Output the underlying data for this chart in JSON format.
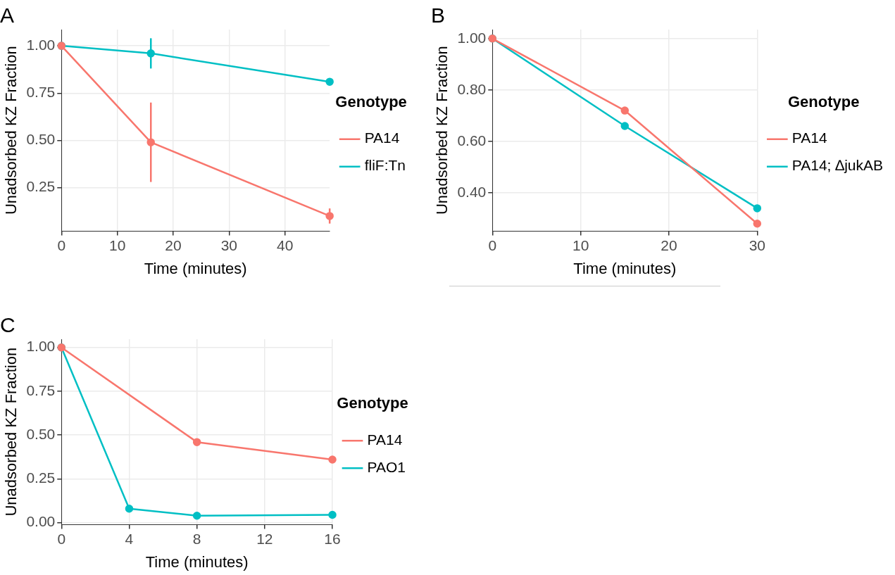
{
  "chart_data": [
    {
      "type": "line",
      "title": "A",
      "xlabel": "Time (minutes)",
      "ylabel": "Unadsorbed KZ Fraction",
      "legend_title": "Genotype",
      "x": [
        0,
        16,
        48
      ],
      "xlim": [
        0,
        48
      ],
      "xticks": [
        0,
        10,
        20,
        30,
        40
      ],
      "ylim": [
        0.02,
        1.086
      ],
      "yticks": [
        {
          "value": 0.25,
          "label": "0.25"
        },
        {
          "value": 0.5,
          "label": "0.50"
        },
        {
          "value": 0.75,
          "label": "0.75"
        },
        {
          "value": 1,
          "label": "1.00"
        }
      ],
      "grid": true,
      "legend": "right",
      "marker": "circle",
      "line_style": "solid",
      "series": [
        {
          "name": "PA14",
          "color": "#f8766d",
          "values": [
            1,
            0.49,
            0.1
          ],
          "errors": [
            null,
            [
              0.28,
              0.7
            ],
            [
              0.06,
              0.14
            ]
          ]
        },
        {
          "name": "fliF:Tn",
          "color": "#00bfc4",
          "values": [
            1,
            0.96,
            0.81
          ],
          "errors": [
            null,
            [
              0.88,
              1.04
            ],
            null
          ]
        }
      ]
    },
    {
      "type": "line",
      "title": "B",
      "xlabel": "Time (minutes)",
      "ylabel": "Unadsorbed KZ Fraction",
      "legend_title": "Genotype",
      "x": [
        0,
        15,
        30
      ],
      "xlim": [
        0,
        30
      ],
      "xticks": [
        0,
        10,
        20,
        30
      ],
      "ylim": [
        0.251,
        1.035
      ],
      "yticks": [
        {
          "value": 0.4,
          "label": "0.40"
        },
        {
          "value": 0.6,
          "label": "0.60"
        },
        {
          "value": 0.8,
          "label": "0.80"
        },
        {
          "value": 1,
          "label": "1.00"
        }
      ],
      "grid": true,
      "legend": "right",
      "marker": "circle",
      "line_style": "solid",
      "series": [
        {
          "name": "PA14",
          "color": "#f8766d",
          "values": [
            1,
            0.72,
            0.28
          ]
        },
        {
          "name": "PA14; ∆jukAB",
          "color": "#00bfc4",
          "values": [
            1,
            0.66,
            0.34
          ]
        }
      ]
    },
    {
      "type": "line",
      "title": "C",
      "xlabel": "Time (minutes)",
      "ylabel": "Unadsorbed KZ Fraction",
      "legend_title": "Genotype",
      "xlim": [
        0,
        16
      ],
      "xticks": [
        0,
        4,
        8,
        12,
        16
      ],
      "ylim": [
        -0.011,
        1.047
      ],
      "yticks": [
        {
          "value": 0,
          "label": "0.00"
        },
        {
          "value": 0.25,
          "label": "0.25"
        },
        {
          "value": 0.5,
          "label": "0.50"
        },
        {
          "value": 0.75,
          "label": "0.75"
        },
        {
          "value": 1,
          "label": "1.00"
        }
      ],
      "grid": true,
      "legend": "right",
      "marker": "circle",
      "line_style": "solid",
      "series": [
        {
          "name": "PA14",
          "color": "#f8766d",
          "x": [
            0,
            8,
            16
          ],
          "values": [
            1,
            0.46,
            0.36
          ]
        },
        {
          "name": "PAO1",
          "color": "#00bfc4",
          "x": [
            0,
            4,
            8,
            16
          ],
          "values": [
            1,
            0.08,
            0.04,
            0.045
          ]
        }
      ]
    }
  ]
}
